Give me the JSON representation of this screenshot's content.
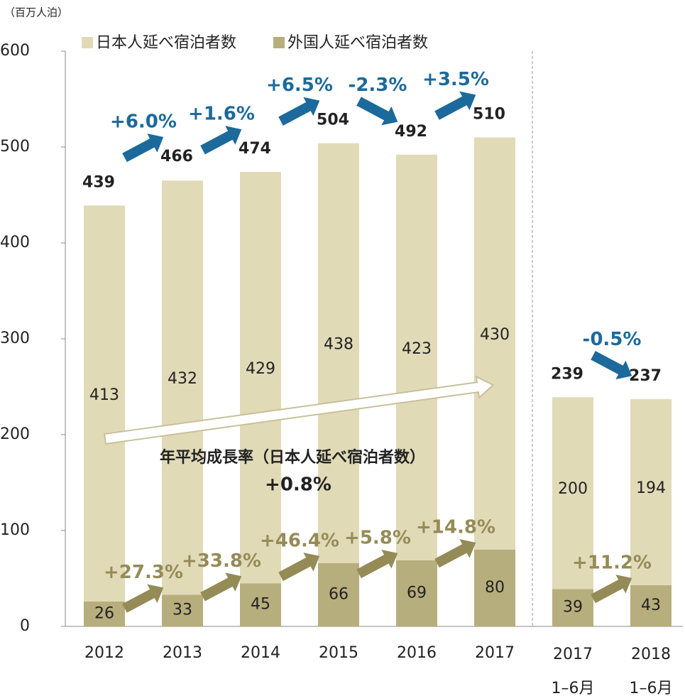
{
  "chart_data": {
    "type": "stacked_bar",
    "unit_label": "（百万人泊）",
    "categories": [
      "2012",
      "2013",
      "2014",
      "2015",
      "2016",
      "2017",
      "2017\n1–6月",
      "2018\n1–6月"
    ],
    "series": [
      {
        "name": "外国人延べ宿泊者数",
        "color": "#b7ae7d",
        "values": [
          26,
          33,
          45,
          66,
          69,
          80,
          39,
          43
        ],
        "growth_labels": [
          "+27.3%",
          "+33.8%",
          "+46.4%",
          "+5.8%",
          "+14.8%",
          null,
          "+11.2%"
        ],
        "growth_color": "#958b57"
      },
      {
        "name": "日本人延べ宿泊者数",
        "color": "#e1dab7",
        "values": [
          413,
          432,
          429,
          438,
          423,
          430,
          200,
          194
        ]
      }
    ],
    "totals": [
      439,
      466,
      474,
      504,
      492,
      510,
      239,
      237
    ],
    "total_growth_labels": [
      "+6.0%",
      "+1.6%",
      "+6.5%",
      "-2.3%",
      "+3.5%",
      null,
      "-0.5%"
    ],
    "total_growth_color": "#1b6a9b",
    "cagr_title": "年平均成長率（日本人延べ宿泊者数）",
    "cagr_value": "+0.8%",
    "ylim": [
      0,
      600
    ],
    "yticks": [
      0,
      100,
      200,
      300,
      400,
      500,
      600
    ]
  }
}
